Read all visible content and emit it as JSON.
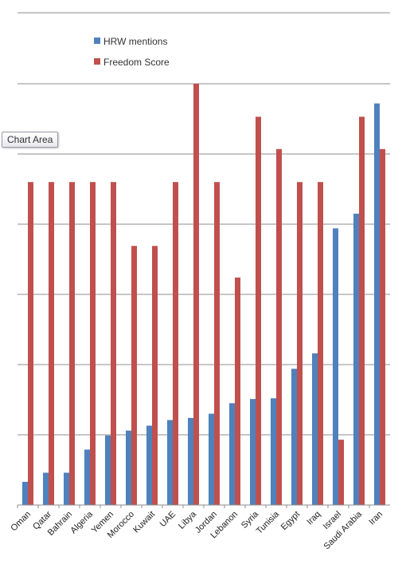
{
  "tooltip": {
    "label": "Chart Area"
  },
  "chart_data": {
    "type": "bar",
    "title": "",
    "xlabel": "",
    "ylabel": "",
    "ylim": [
      0,
      6
    ],
    "grid": true,
    "legend_position": "top-left",
    "categories": [
      "Oman",
      "Qatar",
      "Bahrain",
      "Algeria",
      "Yemen",
      "Morocco",
      "Kuwait",
      "UAE",
      "Libya",
      "Jordan",
      "Lebanon",
      "Syria",
      "Tunisia",
      "Egypt",
      "Iraq",
      "Israel",
      "Saudi Arabia",
      "Iran"
    ],
    "series": [
      {
        "name": "HRW mentions",
        "color": "#4f81bd",
        "values": [
          0.33,
          0.46,
          0.46,
          0.79,
          0.99,
          1.06,
          1.13,
          1.21,
          1.24,
          1.3,
          1.45,
          1.51,
          1.52,
          1.94,
          2.16,
          3.94,
          4.15,
          5.72
        ]
      },
      {
        "name": "Freedom Score",
        "color": "#c0504d",
        "values": [
          4.6,
          4.6,
          4.6,
          4.6,
          4.6,
          3.69,
          3.69,
          4.6,
          6.0,
          4.6,
          3.24,
          5.53,
          5.07,
          4.6,
          4.6,
          0.93,
          5.53,
          5.07
        ]
      }
    ]
  }
}
